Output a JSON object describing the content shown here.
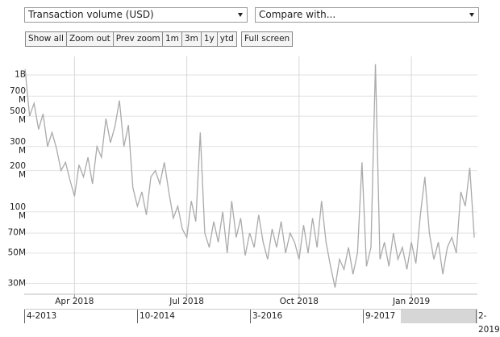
{
  "toolbar": {
    "metric_select": "Transaction volume (USD)",
    "compare_select": "Compare with...",
    "zoom_buttons": [
      "Show all",
      "Zoom out",
      "Prev zoom"
    ],
    "range_buttons": [
      "1m",
      "3m",
      "1y",
      "ytd"
    ],
    "fullscreen_button": "Full screen"
  },
  "chart_data": {
    "type": "line",
    "log_scale": true,
    "grid": true,
    "color": "#aaaaaa",
    "xlim": [
      2018.138,
      2019.147
    ],
    "xticks": [
      {
        "value": 2018.25,
        "label": "Apr 2018"
      },
      {
        "value": 2018.5,
        "label": "Jul 2018"
      },
      {
        "value": 2018.75,
        "label": "Oct 2018"
      },
      {
        "value": 2019.0,
        "label": "Jan 2019"
      }
    ],
    "ylim": [
      25000000,
      1365000000
    ],
    "yticks": [
      {
        "value": 1000000000,
        "label": "1B"
      },
      {
        "value": 700000000,
        "label": "700 M"
      },
      {
        "value": 500000000,
        "label": "500 M"
      },
      {
        "value": 300000000,
        "label": "300 M"
      },
      {
        "value": 200000000,
        "label": "200 M"
      },
      {
        "value": 100000000,
        "label": "100 M"
      },
      {
        "value": 70000000,
        "label": "70M"
      },
      {
        "value": 50000000,
        "label": "50M"
      },
      {
        "value": 30000000,
        "label": "30M"
      }
    ],
    "x": [
      2018.14,
      2018.15,
      2018.16,
      2018.17,
      2018.18,
      2018.19,
      2018.2,
      2018.21,
      2018.22,
      2018.23,
      2018.24,
      2018.25,
      2018.26,
      2018.27,
      2018.28,
      2018.29,
      2018.3,
      2018.31,
      2018.32,
      2018.33,
      2018.34,
      2018.35,
      2018.36,
      2018.37,
      2018.38,
      2018.39,
      2018.4,
      2018.41,
      2018.42,
      2018.43,
      2018.44,
      2018.45,
      2018.46,
      2018.47,
      2018.48,
      2018.49,
      2018.5,
      2018.51,
      2018.52,
      2018.53,
      2018.54,
      2018.55,
      2018.56,
      2018.57,
      2018.58,
      2018.59,
      2018.6,
      2018.61,
      2018.62,
      2018.63,
      2018.64,
      2018.65,
      2018.66,
      2018.67,
      2018.68,
      2018.69,
      2018.7,
      2018.71,
      2018.72,
      2018.73,
      2018.74,
      2018.75,
      2018.76,
      2018.77,
      2018.78,
      2018.79,
      2018.8,
      2018.81,
      2018.82,
      2018.83,
      2018.84,
      2018.85,
      2018.86,
      2018.87,
      2018.88,
      2018.89,
      2018.9,
      2018.91,
      2018.92,
      2018.93,
      2018.94,
      2018.95,
      2018.96,
      2018.97,
      2018.98,
      2018.99,
      2019.0,
      2019.01,
      2019.02,
      2019.03,
      2019.04,
      2019.05,
      2019.06,
      2019.07,
      2019.08,
      2019.09,
      2019.1,
      2019.11,
      2019.12,
      2019.13,
      2019.14
    ],
    "values": [
      1100000000,
      500000000,
      620000000,
      400000000,
      520000000,
      300000000,
      380000000,
      290000000,
      200000000,
      230000000,
      170000000,
      130000000,
      220000000,
      180000000,
      250000000,
      160000000,
      300000000,
      250000000,
      480000000,
      320000000,
      420000000,
      650000000,
      300000000,
      430000000,
      150000000,
      110000000,
      140000000,
      95000000,
      180000000,
      200000000,
      160000000,
      230000000,
      140000000,
      90000000,
      110000000,
      75000000,
      65000000,
      120000000,
      85000000,
      380000000,
      70000000,
      55000000,
      85000000,
      60000000,
      100000000,
      50000000,
      120000000,
      65000000,
      90000000,
      48000000,
      70000000,
      55000000,
      95000000,
      60000000,
      45000000,
      75000000,
      55000000,
      85000000,
      50000000,
      70000000,
      60000000,
      45000000,
      80000000,
      50000000,
      90000000,
      55000000,
      120000000,
      60000000,
      40000000,
      28000000,
      45000000,
      38000000,
      55000000,
      35000000,
      50000000,
      230000000,
      40000000,
      55000000,
      1200000000,
      45000000,
      60000000,
      40000000,
      70000000,
      45000000,
      55000000,
      38000000,
      60000000,
      42000000,
      95000000,
      180000000,
      70000000,
      45000000,
      60000000,
      35000000,
      55000000,
      65000000,
      50000000,
      140000000,
      110000000,
      210000000,
      65000000
    ]
  },
  "navigator": {
    "labels": [
      "4-2013",
      "10-2014",
      "3-2016",
      "9-2017",
      "2-2019"
    ]
  }
}
